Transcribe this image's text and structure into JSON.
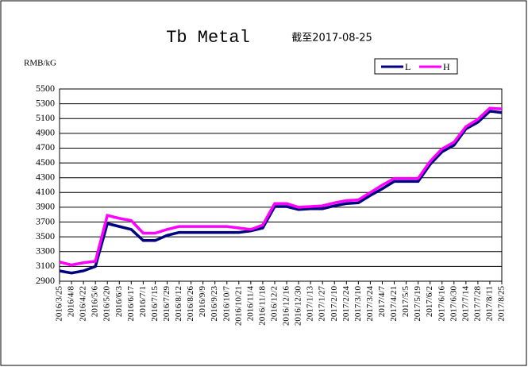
{
  "chart_data": {
    "type": "line",
    "title": "Tb Metal",
    "subtitle": "截至2017-08-25",
    "y_label": "RMB/kG",
    "categories": [
      "2016/3/25",
      "2016/4/8",
      "2016/4/22",
      "2016/5/6",
      "2016/5/20",
      "2016/6/3",
      "2016/6/17",
      "2016/7/1",
      "2016/7/15",
      "2016/7/29",
      "2016/8/12",
      "2016/8/26",
      "2016/9/9",
      "2016/9/23",
      "2016/10/7",
      "2016/10/21",
      "2016/11/4",
      "2016/11/18",
      "2016/12/2",
      "2016/12/16",
      "2016/12/30",
      "2017/1/13",
      "2017/1/27",
      "2017/2/10",
      "2017/2/24",
      "2017/3/10",
      "2017/3/24",
      "2017/4/7",
      "2017/4/21",
      "2017/5/5",
      "2017/5/19",
      "2017/6/2",
      "2017/6/16",
      "2017/6/30",
      "2017/7/14",
      "2017/7/28",
      "2017/8/11",
      "2017/8/25"
    ],
    "series": [
      {
        "name": "L",
        "color": "#000080",
        "values": [
          3040,
          3010,
          3040,
          3100,
          3680,
          3640,
          3600,
          3450,
          3450,
          3520,
          3560,
          3560,
          3560,
          3560,
          3560,
          3560,
          3580,
          3620,
          3910,
          3910,
          3870,
          3880,
          3880,
          3920,
          3950,
          3960,
          4060,
          4150,
          4250,
          4250,
          4250,
          4480,
          4650,
          4740,
          4960,
          5050,
          5200,
          5180
        ]
      },
      {
        "name": "H",
        "color": "#ff00ff",
        "values": [
          3160,
          3120,
          3150,
          3170,
          3790,
          3750,
          3720,
          3550,
          3550,
          3600,
          3640,
          3640,
          3640,
          3640,
          3640,
          3620,
          3600,
          3660,
          3950,
          3950,
          3900,
          3910,
          3920,
          3960,
          3990,
          4000,
          4100,
          4200,
          4290,
          4290,
          4290,
          4520,
          4690,
          4780,
          4990,
          5090,
          5240,
          5230
        ]
      }
    ],
    "ylim": [
      2900,
      5500
    ],
    "yticks": [
      2900,
      3100,
      3300,
      3500,
      3700,
      3900,
      4100,
      4300,
      4500,
      4700,
      4900,
      5100,
      5300,
      5500
    ],
    "grid": true
  }
}
